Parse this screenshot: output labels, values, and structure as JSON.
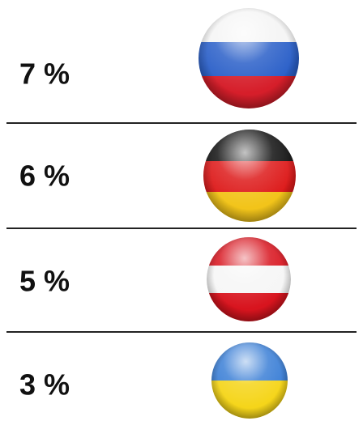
{
  "rows": [
    {
      "label": "7 %"
    },
    {
      "label": "6 %"
    },
    {
      "label": "5 %"
    },
    {
      "label": "3 %"
    }
  ]
}
